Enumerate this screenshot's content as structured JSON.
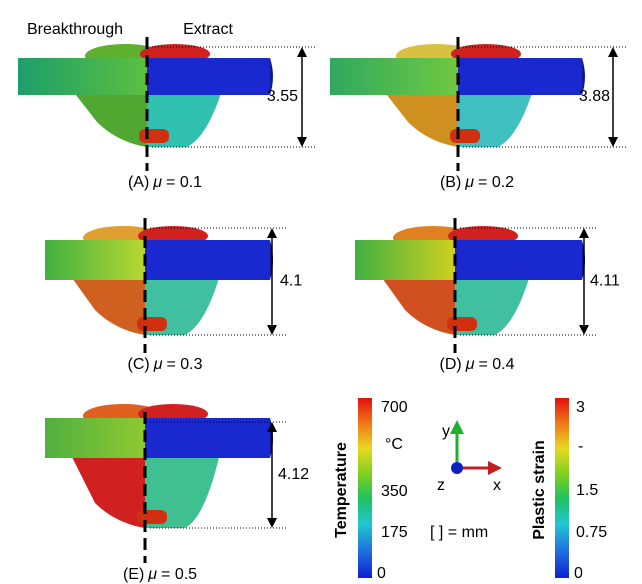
{
  "header": {
    "left_label": "Breakthrough",
    "right_label": "Extract"
  },
  "panels": [
    {
      "label": "(A)",
      "symbol": "μ",
      "value": "= 0.1",
      "height": "3.55"
    },
    {
      "label": "(B)",
      "symbol": "μ",
      "value": "= 0.2",
      "height": "3.88"
    },
    {
      "label": "(C)",
      "symbol": "μ",
      "value": "= 0.3",
      "height": "4.1"
    },
    {
      "label": "(D)",
      "symbol": "μ",
      "value": "= 0.4",
      "height": "4.11"
    },
    {
      "label": "(E)",
      "symbol": "μ",
      "value": "= 0.5",
      "height": "4.12"
    }
  ],
  "temperature_bar": {
    "title": "Temperature",
    "unit": "°C",
    "ticks": [
      "700",
      "350",
      "175",
      "0"
    ]
  },
  "strain_bar": {
    "title": "Plastic strain",
    "ticks": [
      "3",
      "-",
      "1.5",
      "0.75",
      "0"
    ]
  },
  "axes": {
    "y": "y",
    "z": "z",
    "x": "x"
  },
  "unit_note": "[ ] = mm"
}
